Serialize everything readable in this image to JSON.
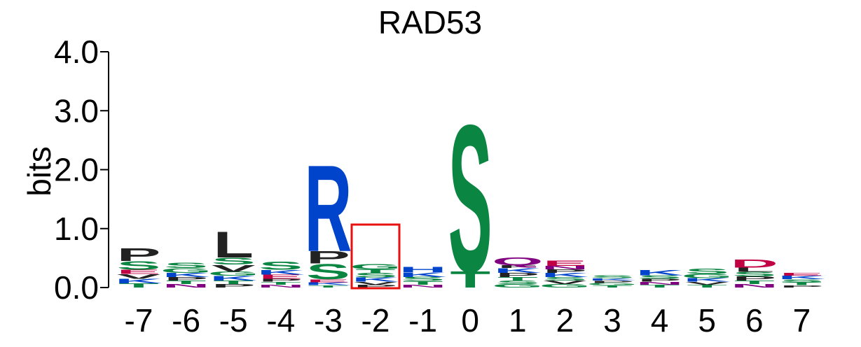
{
  "chart_data": {
    "type": "sequence-logo",
    "title": "RAD53",
    "ylabel": "bits",
    "ylim": [
      0,
      4
    ],
    "yticks": [
      "0.0",
      "1.0",
      "2.0",
      "3.0",
      "4.0"
    ],
    "highlight_position": "-2",
    "colors": {
      "S": "#0a8542",
      "T": "#0a8542",
      "G": "#0a8542",
      "C": "#0a8542",
      "R": "#0044cc",
      "K": "#0044cc",
      "H": "#0044cc",
      "D": "#c20044",
      "E": "#c20044",
      "Q": "#800080",
      "N": "#800080",
      "P": "#222222",
      "L": "#222222",
      "V": "#222222",
      "A": "#222222",
      "I": "#222222",
      "M": "#222222",
      "F": "#222222",
      "W": "#222222",
      "Y": "#222222",
      "highlight": "#e8100f"
    },
    "positions": [
      {
        "label": "-7",
        "stack": [
          [
            "T",
            0.07
          ],
          [
            "K",
            0.08
          ],
          [
            "V",
            0.08
          ],
          [
            "E",
            0.07
          ],
          [
            "S",
            0.15
          ],
          [
            "P",
            0.22
          ]
        ]
      },
      {
        "label": "-6",
        "stack": [
          [
            "N",
            0.06
          ],
          [
            "T",
            0.06
          ],
          [
            "P",
            0.06
          ],
          [
            "K",
            0.07
          ],
          [
            "G",
            0.08
          ],
          [
            "S",
            0.09
          ]
        ]
      },
      {
        "label": "-5",
        "stack": [
          [
            "P",
            0.06
          ],
          [
            "T",
            0.06
          ],
          [
            "K",
            0.08
          ],
          [
            "G",
            0.07
          ],
          [
            "V",
            0.12
          ],
          [
            "S",
            0.12
          ],
          [
            "L",
            0.45
          ]
        ]
      },
      {
        "label": "-4",
        "stack": [
          [
            "N",
            0.05
          ],
          [
            "T",
            0.05
          ],
          [
            "P",
            0.05
          ],
          [
            "E",
            0.07
          ],
          [
            "K",
            0.08
          ],
          [
            "S",
            0.14
          ]
        ]
      },
      {
        "label": "-3",
        "stack": [
          [
            "T",
            0.04
          ],
          [
            "K",
            0.05
          ],
          [
            "E",
            0.05
          ],
          [
            "S",
            0.27
          ],
          [
            "P",
            0.21
          ],
          [
            "R",
            1.5
          ]
        ]
      },
      {
        "label": "-2",
        "stack": [
          [
            "P",
            0.05
          ],
          [
            "V",
            0.05
          ],
          [
            "K",
            0.07
          ],
          [
            "S",
            0.08
          ],
          [
            "T",
            0.06
          ],
          [
            "G",
            0.09
          ]
        ]
      },
      {
        "label": "-1",
        "stack": [
          [
            "N",
            0.05
          ],
          [
            "T",
            0.06
          ],
          [
            "S",
            0.07
          ],
          [
            "K",
            0.08
          ],
          [
            "H",
            0.09
          ]
        ]
      },
      {
        "label": "0",
        "stack": [
          [
            "T",
            0.28
          ],
          [
            "S",
            2.55
          ]
        ]
      },
      {
        "label": "1",
        "stack": [
          [
            "G",
            0.06
          ],
          [
            "S",
            0.06
          ],
          [
            "T",
            0.06
          ],
          [
            "P",
            0.07
          ],
          [
            "K",
            0.08
          ],
          [
            "F",
            0.05
          ],
          [
            "Q",
            0.13
          ]
        ]
      },
      {
        "label": "2",
        "stack": [
          [
            "G",
            0.06
          ],
          [
            "V",
            0.06
          ],
          [
            "S",
            0.06
          ],
          [
            "K",
            0.07
          ],
          [
            "P",
            0.06
          ],
          [
            "N",
            0.06
          ],
          [
            "E",
            0.09
          ]
        ]
      },
      {
        "label": "3",
        "stack": [
          [
            "T",
            0.04
          ],
          [
            "G",
            0.04
          ],
          [
            "P",
            0.04
          ],
          [
            "K",
            0.04
          ],
          [
            "S",
            0.05
          ]
        ]
      },
      {
        "label": "4",
        "stack": [
          [
            "T",
            0.05
          ],
          [
            "N",
            0.05
          ],
          [
            "P",
            0.05
          ],
          [
            "S",
            0.06
          ],
          [
            "K",
            0.09
          ]
        ]
      },
      {
        "label": "5",
        "stack": [
          [
            "T",
            0.05
          ],
          [
            "V",
            0.05
          ],
          [
            "K",
            0.06
          ],
          [
            "G",
            0.07
          ],
          [
            "S",
            0.09
          ]
        ]
      },
      {
        "label": "6",
        "stack": [
          [
            "N",
            0.06
          ],
          [
            "T",
            0.06
          ],
          [
            "P",
            0.07
          ],
          [
            "S",
            0.08
          ],
          [
            "L",
            0.07
          ],
          [
            "D",
            0.14
          ]
        ]
      },
      {
        "label": "7",
        "stack": [
          [
            "P",
            0.04
          ],
          [
            "T",
            0.05
          ],
          [
            "S",
            0.05
          ],
          [
            "K",
            0.06
          ],
          [
            "E",
            0.05
          ]
        ]
      }
    ]
  }
}
